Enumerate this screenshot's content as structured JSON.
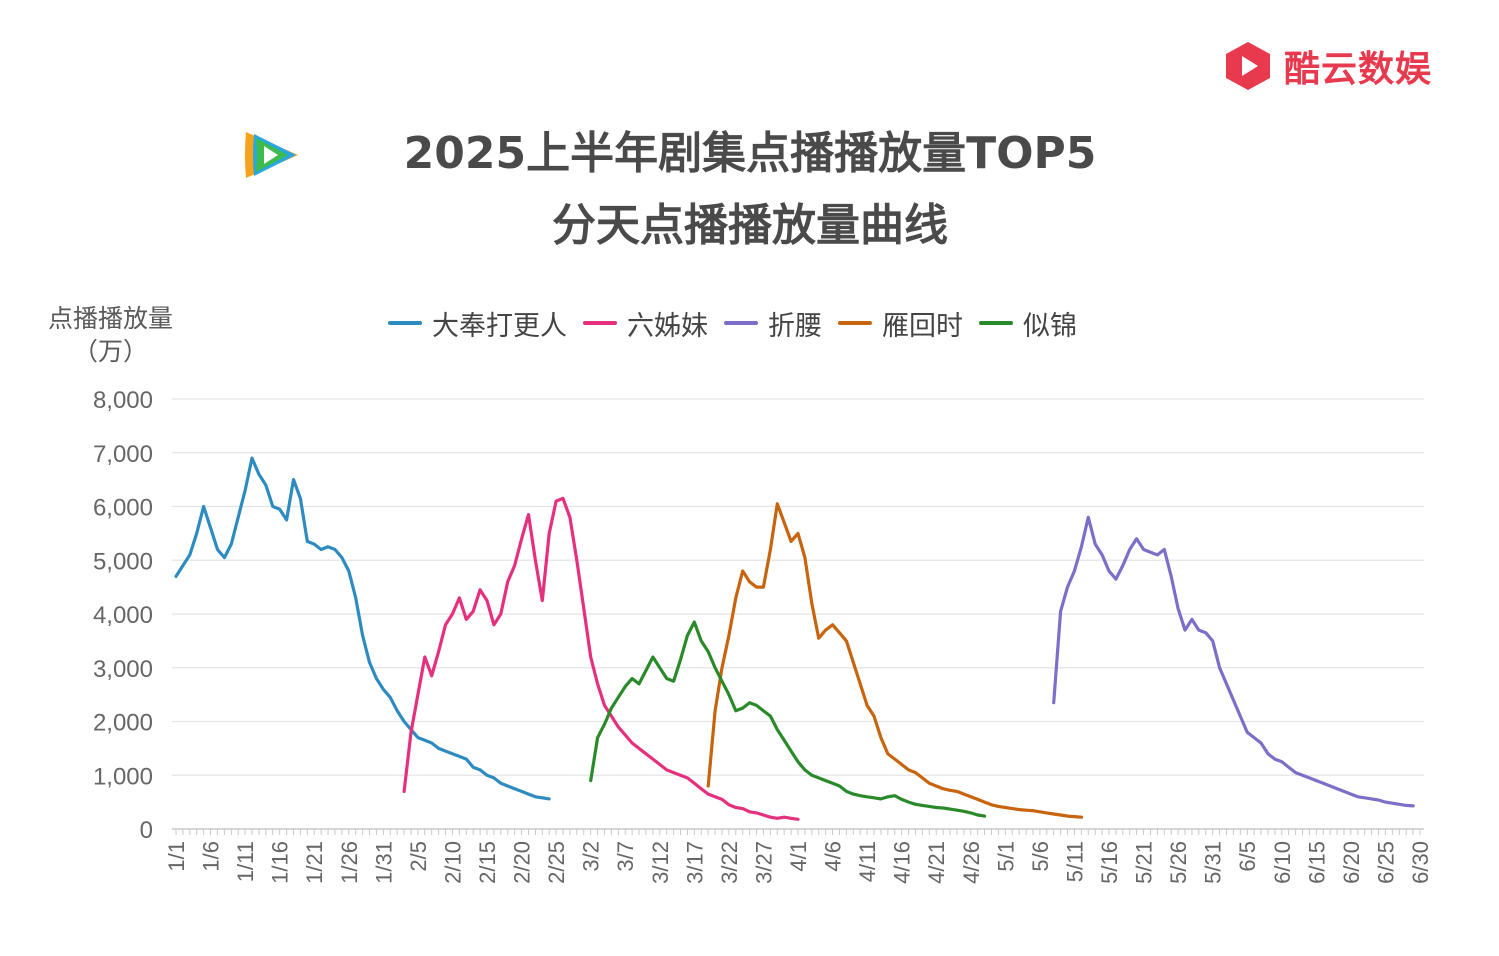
{
  "brand": {
    "name": "酷云数娱",
    "icon": "play-hexagon-logo",
    "color": "#e83a4e"
  },
  "platform_icon": "tencent-video-logo",
  "title": {
    "line1": "2025上半年剧集点播播放量TOP5",
    "line2": "分天点播播放量曲线"
  },
  "y_axis_label": {
    "line1": "点播播放量",
    "line2": "（万）"
  },
  "chart_data": {
    "type": "line",
    "title": "2025上半年剧集点播播放量TOP5 分天点播播放量曲线",
    "ylabel": "点播播放量（万）",
    "xlabel": "",
    "ylim": [
      0,
      8000
    ],
    "yticks": [
      0,
      1000,
      2000,
      3000,
      4000,
      5000,
      6000,
      7000,
      8000
    ],
    "ytick_labels": [
      "0",
      "1,000",
      "2,000",
      "3,000",
      "4,000",
      "5,000",
      "6,000",
      "7,000",
      "8,000"
    ],
    "x_tick_labels": [
      "1/1",
      "1/6",
      "1/11",
      "1/16",
      "1/21",
      "1/26",
      "1/31",
      "2/5",
      "2/10",
      "2/15",
      "2/20",
      "2/25",
      "3/2",
      "3/7",
      "3/12",
      "3/17",
      "3/22",
      "3/27",
      "4/1",
      "4/6",
      "4/11",
      "4/16",
      "4/21",
      "4/26",
      "5/1",
      "5/6",
      "5/11",
      "5/16",
      "5/21",
      "5/26",
      "5/31",
      "6/5",
      "6/10",
      "6/15",
      "6/20",
      "6/25",
      "6/30"
    ],
    "x_unit": "day of year 2025 (1 = 1/1)",
    "grid": true,
    "legend_position": "top",
    "series": [
      {
        "name": "大奉打更人",
        "color": "#2e8bc0",
        "start_day": 1,
        "values": [
          4700,
          4900,
          5100,
          5500,
          6000,
          5600,
          5200,
          5050,
          5300,
          5800,
          6300,
          6900,
          6600,
          6400,
          6000,
          5950,
          5750,
          6500,
          6150,
          5350,
          5300,
          5200,
          5250,
          5200,
          5050,
          4800,
          4300,
          3600,
          3100,
          2800,
          2600,
          2450,
          2200,
          2000,
          1850,
          1700,
          1650,
          1600,
          1500,
          1450,
          1400,
          1350,
          1300,
          1150,
          1100,
          1000,
          950,
          850,
          800,
          750,
          700,
          650,
          600,
          580,
          560
        ]
      },
      {
        "name": "六姊妹",
        "color": "#e5307e",
        "start_day": 34,
        "values": [
          700,
          1800,
          2500,
          3200,
          2850,
          3300,
          3800,
          4000,
          4300,
          3900,
          4050,
          4450,
          4250,
          3800,
          4000,
          4600,
          4900,
          5400,
          5850,
          5000,
          4250,
          5500,
          6100,
          6150,
          5800,
          5000,
          4100,
          3200,
          2700,
          2300,
          2100,
          1900,
          1750,
          1600,
          1500,
          1400,
          1300,
          1200,
          1100,
          1050,
          1000,
          950,
          850,
          750,
          650,
          600,
          550,
          450,
          400,
          380,
          320,
          300,
          260,
          220,
          200,
          220,
          200,
          180
        ]
      },
      {
        "name": "折腰",
        "color": "#7b6fc9",
        "start_day": 128,
        "values": [
          2350,
          4050,
          4500,
          4800,
          5250,
          5800,
          5300,
          5100,
          4800,
          4650,
          4900,
          5200,
          5400,
          5200,
          5150,
          5100,
          5200,
          4700,
          4100,
          3700,
          3900,
          3700,
          3650,
          3500,
          3000,
          2700,
          2400,
          2100,
          1800,
          1700,
          1600,
          1400,
          1300,
          1250,
          1150,
          1050,
          1000,
          950,
          900,
          850,
          800,
          750,
          700,
          650,
          600,
          580,
          560,
          540,
          500,
          480,
          460,
          440,
          430
        ]
      },
      {
        "name": "雁回时",
        "color": "#c8630e",
        "start_day": 78,
        "values": [
          800,
          2200,
          3000,
          3600,
          4300,
          4800,
          4600,
          4500,
          4500,
          5200,
          6050,
          5700,
          5350,
          5500,
          5050,
          4200,
          3550,
          3700,
          3800,
          3650,
          3500,
          3100,
          2700,
          2300,
          2100,
          1700,
          1400,
          1300,
          1200,
          1100,
          1050,
          950,
          850,
          800,
          750,
          720,
          700,
          650,
          600,
          550,
          500,
          450,
          420,
          400,
          380,
          360,
          350,
          340,
          320,
          300,
          280,
          260,
          240,
          230,
          220
        ]
      },
      {
        "name": "似锦",
        "color": "#2a8a2a",
        "start_day": 61,
        "values": [
          900,
          1700,
          1950,
          2250,
          2450,
          2650,
          2800,
          2700,
          2950,
          3200,
          3000,
          2800,
          2750,
          3150,
          3600,
          3850,
          3500,
          3300,
          3000,
          2750,
          2500,
          2200,
          2250,
          2350,
          2300,
          2200,
          2100,
          1850,
          1650,
          1450,
          1250,
          1100,
          1000,
          950,
          900,
          850,
          800,
          700,
          650,
          620,
          600,
          580,
          560,
          600,
          620,
          550,
          500,
          460,
          440,
          420,
          400,
          390,
          370,
          350,
          330,
          300,
          260,
          240
        ]
      }
    ]
  }
}
